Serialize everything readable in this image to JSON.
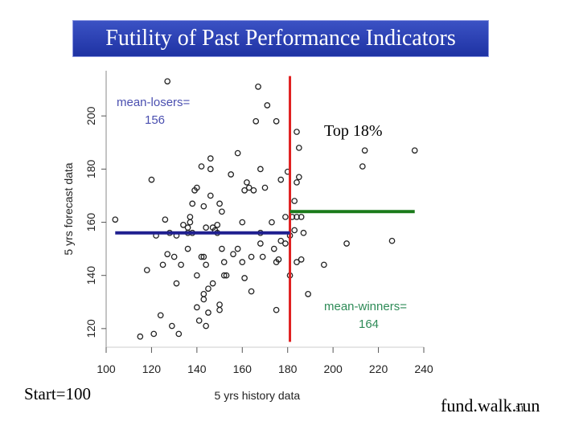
{
  "slide": {
    "title": "Futility of Past Performance Indicators",
    "start_label": "Start=100",
    "brand": "fund.walk.run",
    "page_number": "51"
  },
  "colors": {
    "title_bg": "#2a40b8",
    "losers_line": "#1f1f8f",
    "winners_line": "#1a7a1a",
    "divider": "#e02020",
    "label_blue": "#4a4fb0",
    "label_green": "#2e8b57"
  },
  "chart_data": {
    "type": "scatter",
    "xlabel": "5 yrs history data",
    "ylabel": "5 yrs forecast data",
    "xlim": [
      100,
      240
    ],
    "ylim": [
      113,
      217
    ],
    "xticks": [
      100,
      120,
      140,
      160,
      180,
      200,
      220,
      240
    ],
    "yticks": [
      120,
      140,
      160,
      180,
      200
    ],
    "grid": false,
    "divider_x": 181,
    "points": [
      [
        104,
        161
      ],
      [
        115,
        117
      ],
      [
        118,
        142
      ],
      [
        120,
        176
      ],
      [
        121,
        118
      ],
      [
        122,
        155
      ],
      [
        124,
        125
      ],
      [
        125,
        144
      ],
      [
        126,
        161
      ],
      [
        127,
        148
      ],
      [
        127,
        213
      ],
      [
        128,
        156
      ],
      [
        129,
        121
      ],
      [
        130,
        147
      ],
      [
        131,
        137
      ],
      [
        131,
        155
      ],
      [
        132,
        118
      ],
      [
        133,
        144
      ],
      [
        134,
        159
      ],
      [
        136,
        150
      ],
      [
        136,
        156
      ],
      [
        136,
        158
      ],
      [
        137,
        160
      ],
      [
        137,
        162
      ],
      [
        138,
        156
      ],
      [
        138,
        167
      ],
      [
        139,
        172
      ],
      [
        140,
        173
      ],
      [
        140,
        140
      ],
      [
        140,
        128
      ],
      [
        141,
        123
      ],
      [
        142,
        181
      ],
      [
        142,
        147
      ],
      [
        143,
        166
      ],
      [
        143,
        131
      ],
      [
        143,
        147
      ],
      [
        143,
        133
      ],
      [
        144,
        158
      ],
      [
        144,
        121
      ],
      [
        144,
        144
      ],
      [
        145,
        135
      ],
      [
        145,
        126
      ],
      [
        146,
        180
      ],
      [
        146,
        184
      ],
      [
        146,
        170
      ],
      [
        147,
        137
      ],
      [
        147,
        158
      ],
      [
        148,
        157
      ],
      [
        149,
        156
      ],
      [
        149,
        159
      ],
      [
        150,
        167
      ],
      [
        150,
        129
      ],
      [
        150,
        127
      ],
      [
        151,
        164
      ],
      [
        151,
        150
      ],
      [
        152,
        145
      ],
      [
        152,
        140
      ],
      [
        153,
        140
      ],
      [
        155,
        178
      ],
      [
        156,
        148
      ],
      [
        158,
        186
      ],
      [
        158,
        150
      ],
      [
        160,
        160
      ],
      [
        160,
        145
      ],
      [
        161,
        139
      ],
      [
        161,
        172
      ],
      [
        162,
        175
      ],
      [
        163,
        173
      ],
      [
        164,
        147
      ],
      [
        164,
        134
      ],
      [
        165,
        172
      ],
      [
        166,
        198
      ],
      [
        167,
        211
      ],
      [
        168,
        180
      ],
      [
        168,
        156
      ],
      [
        168,
        152
      ],
      [
        169,
        147
      ],
      [
        170,
        173
      ],
      [
        171,
        204
      ],
      [
        173,
        160
      ],
      [
        174,
        150
      ],
      [
        175,
        145
      ],
      [
        175,
        198
      ],
      [
        175,
        127
      ],
      [
        176,
        146
      ],
      [
        177,
        176
      ],
      [
        177,
        153
      ],
      [
        179,
        152
      ],
      [
        179,
        162
      ],
      [
        180,
        179
      ],
      [
        181,
        140
      ],
      [
        181,
        155
      ],
      [
        182,
        162
      ],
      [
        183,
        168
      ],
      [
        183,
        157
      ],
      [
        184,
        175
      ],
      [
        184,
        194
      ],
      [
        184,
        162
      ],
      [
        184,
        145
      ],
      [
        185,
        177
      ],
      [
        185,
        188
      ],
      [
        186,
        162
      ],
      [
        186,
        146
      ],
      [
        187,
        156
      ],
      [
        189,
        133
      ],
      [
        196,
        144
      ],
      [
        206,
        152
      ],
      [
        213,
        181
      ],
      [
        214,
        187
      ],
      [
        226,
        153
      ],
      [
        236,
        187
      ]
    ],
    "segments": [
      {
        "name": "mean-losers",
        "label": [
          "mean-losers=",
          "156"
        ],
        "x0": 104,
        "x1": 181,
        "y": 156
      },
      {
        "name": "mean-winners",
        "label": [
          "mean-winners=",
          "164"
        ],
        "x0": 181,
        "x1": 236,
        "y": 164
      }
    ],
    "annotations": [
      {
        "text": "Top 18%"
      }
    ]
  }
}
